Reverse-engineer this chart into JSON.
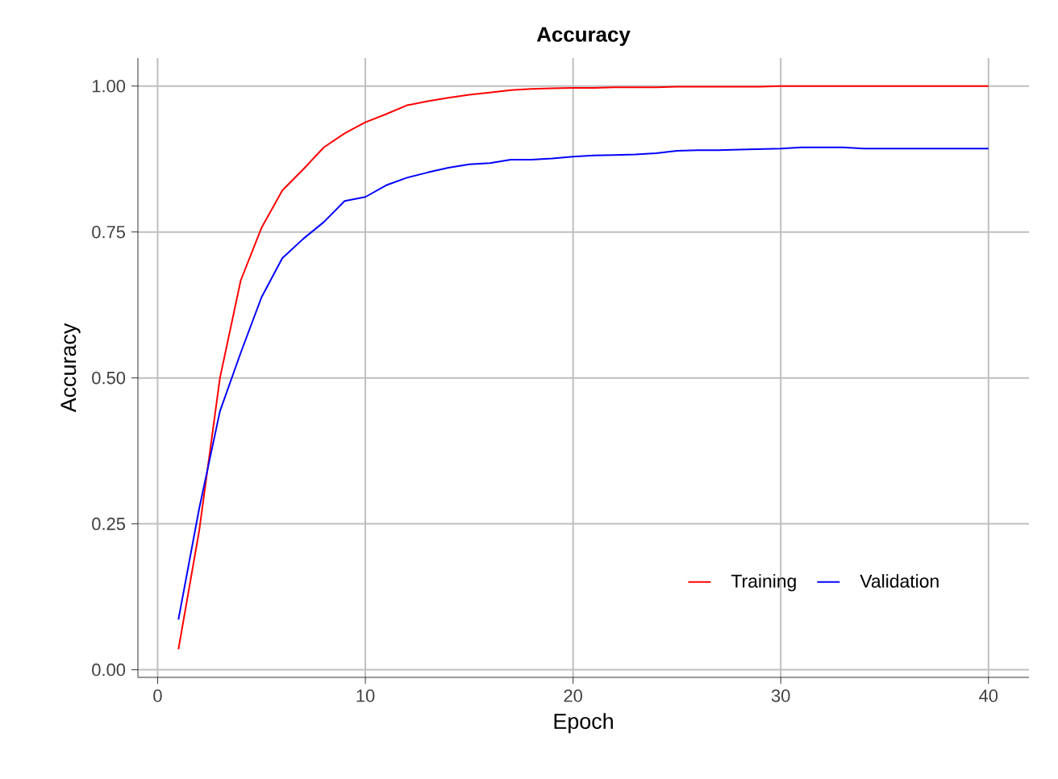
{
  "chart_data": {
    "type": "line",
    "title": "Accuracy",
    "xlabel": "Epoch",
    "ylabel": "Accuracy",
    "x": [
      1,
      2,
      3,
      4,
      5,
      6,
      7,
      8,
      9,
      10,
      11,
      12,
      13,
      14,
      15,
      16,
      17,
      18,
      19,
      20,
      21,
      22,
      23,
      24,
      25,
      26,
      27,
      28,
      29,
      30,
      31,
      32,
      33,
      34,
      35,
      36,
      37,
      38,
      39,
      40
    ],
    "series": [
      {
        "name": "Training",
        "color": "#ff0000",
        "values": [
          0.035,
          0.238,
          0.5,
          0.667,
          0.757,
          0.821,
          0.857,
          0.895,
          0.919,
          0.938,
          0.952,
          0.967,
          0.974,
          0.98,
          0.985,
          0.989,
          0.993,
          0.995,
          0.996,
          0.997,
          0.997,
          0.998,
          0.998,
          0.998,
          0.999,
          0.999,
          0.999,
          0.999,
          0.999,
          1.0,
          1.0,
          1.0,
          1.0,
          1.0,
          1.0,
          1.0,
          1.0,
          1.0,
          1.0,
          1.0
        ]
      },
      {
        "name": "Validation",
        "color": "#0000ff",
        "values": [
          0.086,
          0.276,
          0.443,
          0.543,
          0.638,
          0.705,
          0.738,
          0.767,
          0.803,
          0.81,
          0.83,
          0.843,
          0.852,
          0.86,
          0.866,
          0.868,
          0.874,
          0.874,
          0.876,
          0.879,
          0.881,
          0.882,
          0.883,
          0.885,
          0.889,
          0.89,
          0.89,
          0.891,
          0.892,
          0.893,
          0.895,
          0.895,
          0.895,
          0.893,
          0.893,
          0.893,
          0.893,
          0.893,
          0.893,
          0.893
        ]
      }
    ],
    "xlim": [
      -0.95,
      41.95
    ],
    "ylim": [
      -0.013,
      1.048
    ],
    "xticks": [
      0,
      10,
      20,
      30,
      40
    ],
    "yticks": [
      {
        "value": 0,
        "label": "0.00"
      },
      {
        "value": 0.25,
        "label": "0.25"
      },
      {
        "value": 0.5,
        "label": "0.50"
      },
      {
        "value": 0.75,
        "label": "0.75"
      },
      {
        "value": 1,
        "label": "1.00"
      }
    ],
    "grid": true,
    "legend": "bottom right",
    "marker": "none",
    "line_style": "solid"
  }
}
